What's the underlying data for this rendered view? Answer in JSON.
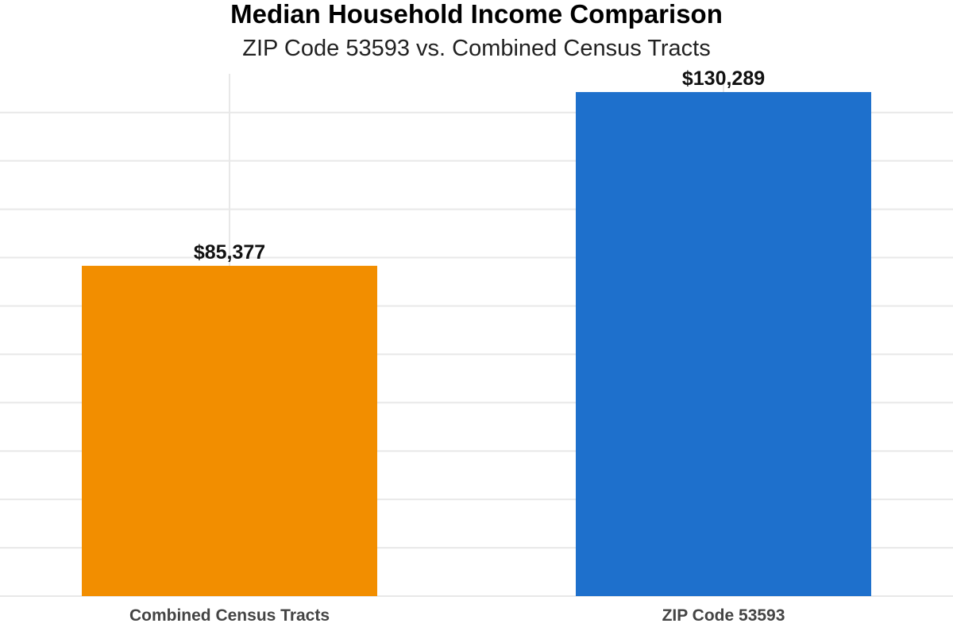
{
  "chart_data": {
    "type": "bar",
    "title": "Median Household Income Comparison",
    "subtitle": "ZIP Code 53593 vs. Combined Census Tracts",
    "categories": [
      "Combined Census Tracts",
      "ZIP Code 53593"
    ],
    "values": [
      85377,
      130289
    ],
    "data_labels": [
      "$85,377",
      "$130,289"
    ],
    "colors": [
      "#F28E00",
      "#1E70CC"
    ],
    "ylim": [
      0,
      135000
    ],
    "grid": true,
    "legend": "none"
  }
}
